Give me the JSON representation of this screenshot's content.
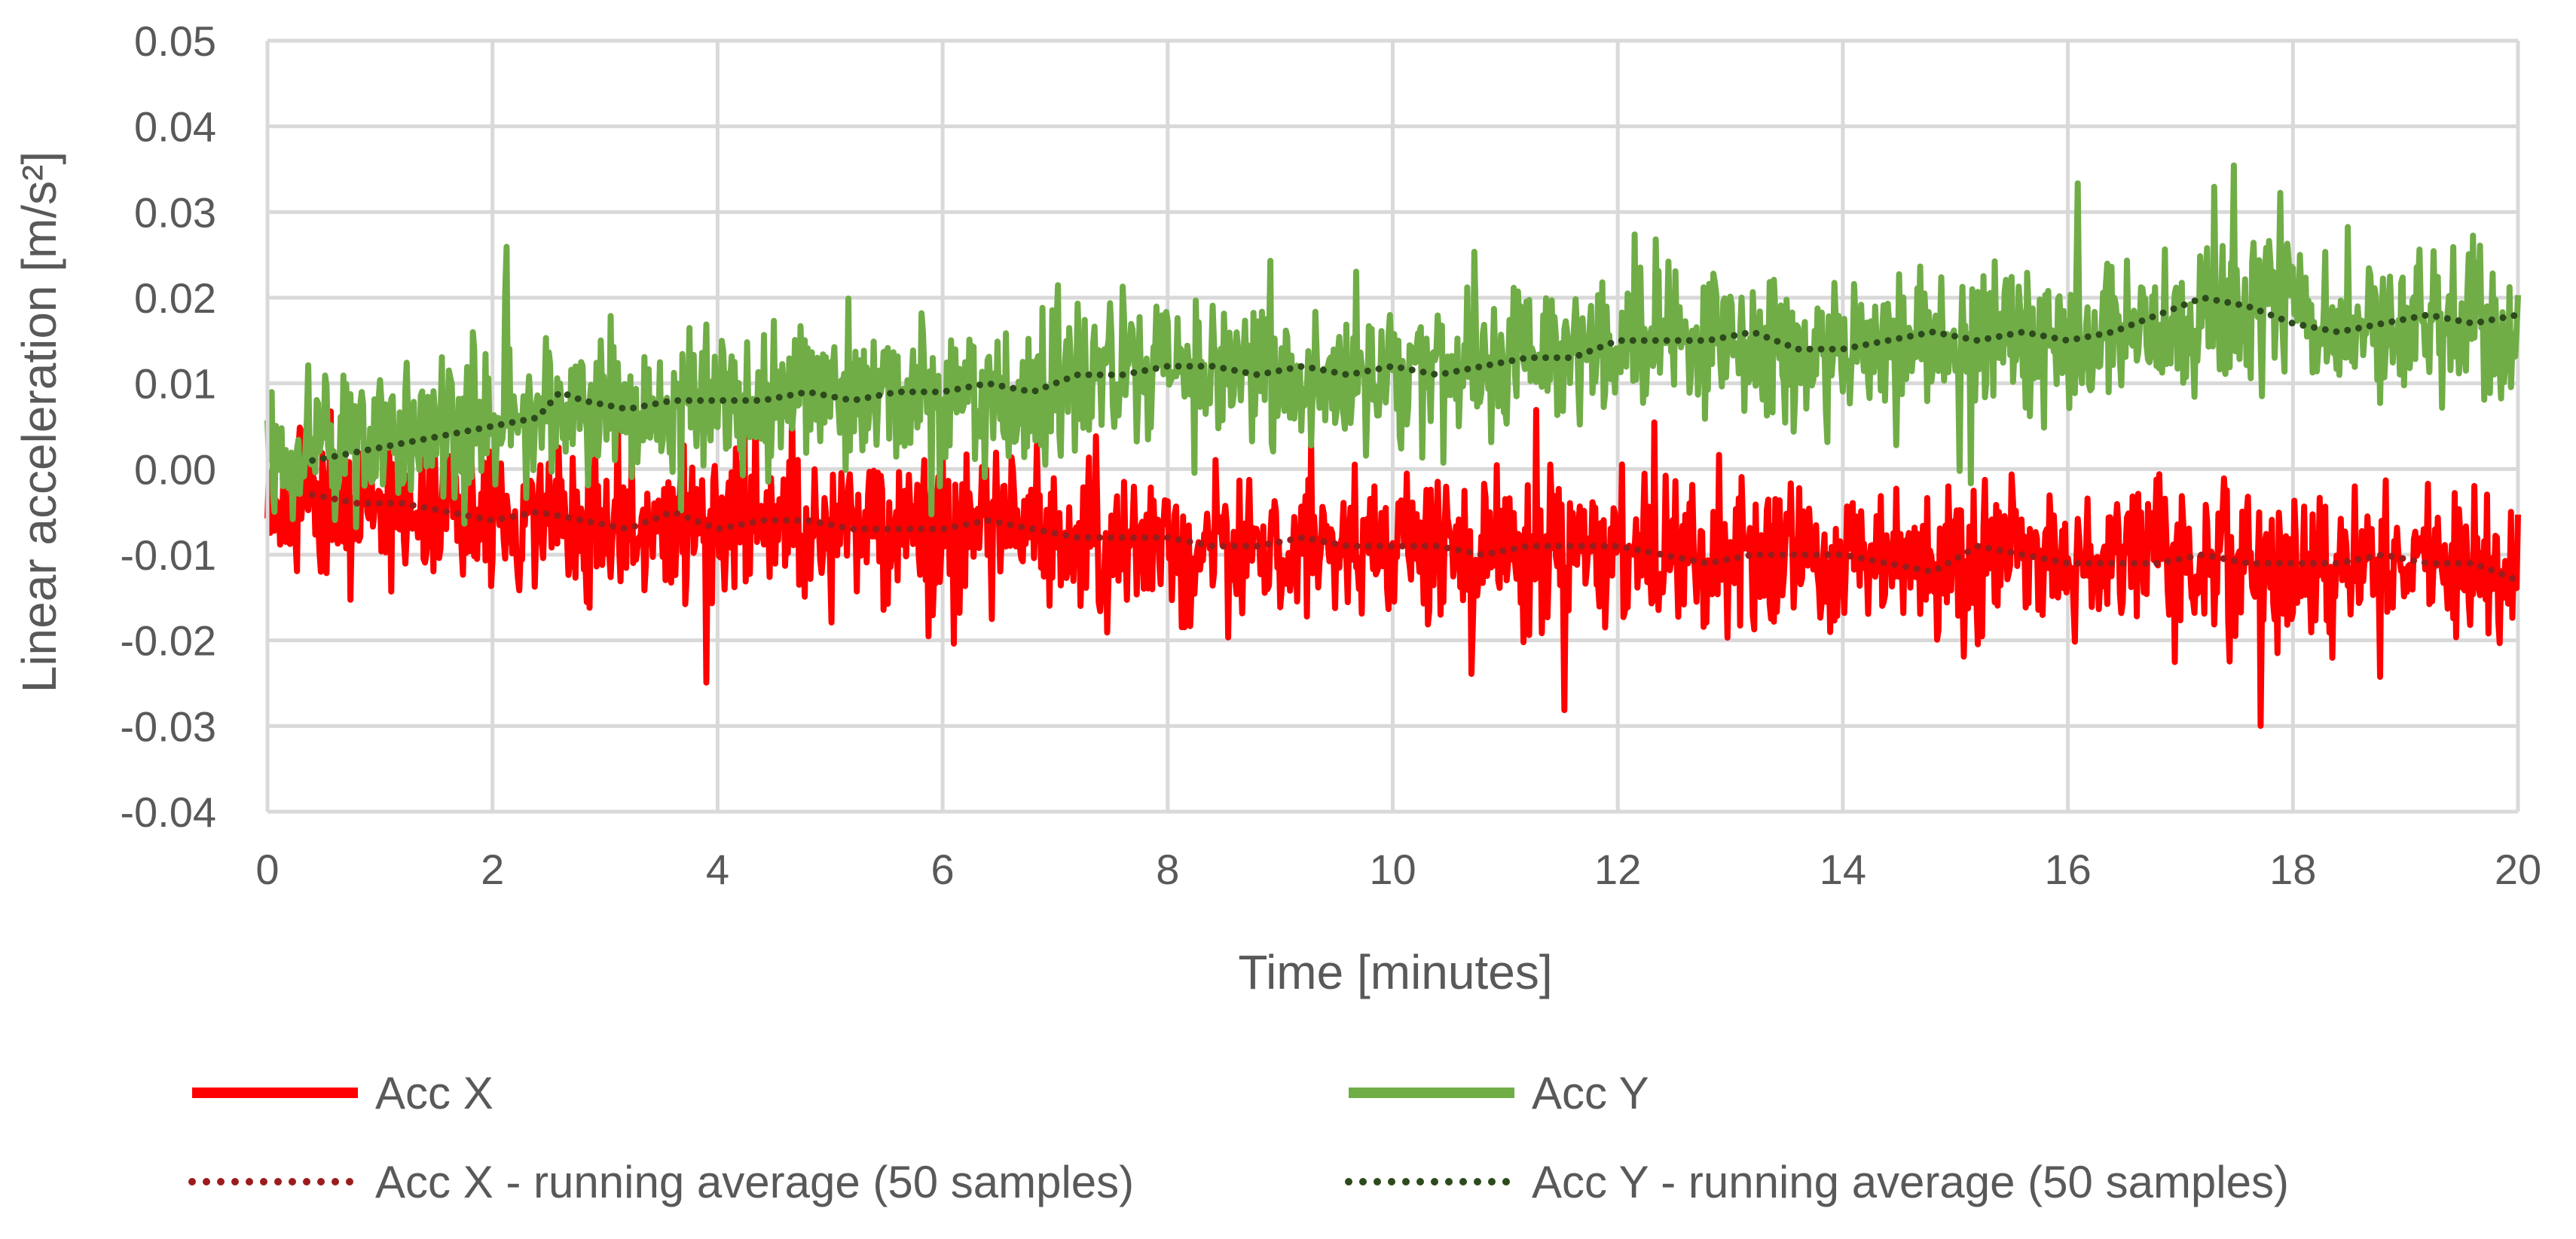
{
  "chart_data": {
    "type": "line",
    "title": "",
    "xlabel": "Time [minutes]",
    "ylabel": "Linear acceleration [m/s²]",
    "xlim": [
      0,
      20
    ],
    "ylim": [
      -0.04,
      0.05
    ],
    "x_ticks": [
      0,
      2,
      4,
      6,
      8,
      10,
      12,
      14,
      16,
      18,
      20
    ],
    "x_tick_labels": [
      "0",
      "2",
      "4",
      "6",
      "8",
      "10",
      "12",
      "14",
      "16",
      "18",
      "20"
    ],
    "y_ticks": [
      -0.04,
      -0.03,
      -0.02,
      -0.01,
      0.0,
      0.01,
      0.02,
      0.03,
      0.04,
      0.05
    ],
    "y_tick_labels": [
      "-0.04",
      "-0.03",
      "-0.02",
      "-0.01",
      "0.00",
      "0.01",
      "0.02",
      "0.03",
      "0.04",
      "0.05"
    ],
    "grid": true,
    "legend_position": "bottom",
    "series": [
      {
        "name": "Acc X",
        "style": "solid",
        "color": "#ff0000",
        "x": [
          0.0,
          0.5,
          1.0,
          1.5,
          2.0,
          2.5,
          3.0,
          3.5,
          4.0,
          4.5,
          5.0,
          5.5,
          6.0,
          6.5,
          7.0,
          7.5,
          8.0,
          8.5,
          9.0,
          9.5,
          10.0,
          10.5,
          11.0,
          11.5,
          12.0,
          12.5,
          13.0,
          13.5,
          14.0,
          14.5,
          15.0,
          15.5,
          16.0,
          16.5,
          17.0,
          17.5,
          18.0,
          18.5,
          19.0,
          19.5,
          20.0
        ],
        "mean": [
          -0.004,
          -0.004,
          -0.004,
          -0.005,
          -0.006,
          -0.005,
          -0.007,
          -0.006,
          -0.006,
          -0.006,
          -0.007,
          -0.008,
          -0.007,
          -0.006,
          -0.008,
          -0.009,
          -0.009,
          -0.009,
          -0.009,
          -0.009,
          -0.009,
          -0.009,
          -0.01,
          -0.009,
          -0.009,
          -0.01,
          -0.011,
          -0.01,
          -0.01,
          -0.011,
          -0.011,
          -0.009,
          -0.011,
          -0.011,
          -0.01,
          -0.011,
          -0.011,
          -0.01,
          -0.011,
          -0.011,
          -0.012
        ],
        "noise_range": [
          -0.03,
          0.008
        ]
      },
      {
        "name": "Acc Y",
        "style": "solid",
        "color": "#70ad47",
        "x": [
          0.0,
          0.5,
          1.0,
          1.5,
          2.0,
          2.5,
          3.0,
          3.5,
          4.0,
          4.5,
          5.0,
          5.5,
          6.0,
          6.5,
          7.0,
          7.5,
          8.0,
          8.5,
          9.0,
          9.5,
          10.0,
          10.5,
          11.0,
          11.5,
          12.0,
          12.5,
          13.0,
          13.5,
          14.0,
          14.5,
          15.0,
          15.5,
          16.0,
          16.5,
          17.0,
          17.5,
          18.0,
          18.5,
          19.0,
          19.5,
          20.0
        ],
        "mean": [
          0.001,
          0.002,
          0.002,
          0.004,
          0.005,
          0.008,
          0.007,
          0.006,
          0.008,
          0.008,
          0.009,
          0.008,
          0.009,
          0.008,
          0.01,
          0.012,
          0.012,
          0.012,
          0.011,
          0.01,
          0.012,
          0.011,
          0.013,
          0.013,
          0.014,
          0.015,
          0.015,
          0.013,
          0.013,
          0.014,
          0.015,
          0.016,
          0.015,
          0.015,
          0.017,
          0.018,
          0.02,
          0.017,
          0.016,
          0.017,
          0.017
        ],
        "noise_range": [
          -0.014,
          0.037
        ]
      },
      {
        "name": "Acc X - running average (50 samples)",
        "style": "dotted",
        "color": "#9b1c1c",
        "x": [
          0.4,
          0.8,
          1.2,
          1.6,
          2.0,
          2.4,
          2.8,
          3.2,
          3.6,
          4.0,
          4.4,
          4.8,
          5.2,
          5.6,
          6.0,
          6.4,
          6.8,
          7.2,
          7.6,
          8.0,
          8.4,
          8.8,
          9.2,
          9.6,
          10.0,
          10.4,
          10.8,
          11.2,
          11.6,
          12.0,
          12.4,
          12.8,
          13.2,
          13.6,
          14.0,
          14.4,
          14.8,
          15.2,
          15.6,
          16.0,
          16.4,
          16.8,
          17.2,
          17.6,
          18.0,
          18.4,
          18.8,
          19.2,
          19.6,
          20.0
        ],
        "values": [
          -0.003,
          -0.004,
          -0.004,
          -0.005,
          -0.006,
          -0.005,
          -0.006,
          -0.007,
          -0.005,
          -0.007,
          -0.006,
          -0.006,
          -0.007,
          -0.007,
          -0.007,
          -0.006,
          -0.007,
          -0.008,
          -0.008,
          -0.008,
          -0.009,
          -0.009,
          -0.008,
          -0.009,
          -0.009,
          -0.009,
          -0.01,
          -0.009,
          -0.009,
          -0.009,
          -0.01,
          -0.011,
          -0.01,
          -0.01,
          -0.01,
          -0.011,
          -0.012,
          -0.009,
          -0.01,
          -0.011,
          -0.011,
          -0.011,
          -0.01,
          -0.011,
          -0.011,
          -0.011,
          -0.01,
          -0.011,
          -0.011,
          -0.013
        ]
      },
      {
        "name": "Acc Y - running average (50 samples)",
        "style": "dotted",
        "color": "#2d4a1c",
        "x": [
          0.4,
          0.8,
          1.2,
          1.6,
          2.0,
          2.4,
          2.6,
          2.8,
          3.2,
          3.6,
          4.0,
          4.4,
          4.8,
          5.2,
          5.6,
          6.0,
          6.4,
          6.8,
          7.2,
          7.6,
          8.0,
          8.4,
          8.8,
          9.2,
          9.6,
          10.0,
          10.4,
          10.8,
          11.2,
          11.6,
          12.0,
          12.4,
          12.8,
          13.2,
          13.6,
          14.0,
          14.4,
          14.8,
          15.2,
          15.6,
          16.0,
          16.4,
          16.8,
          17.2,
          17.6,
          18.0,
          18.4,
          18.8,
          19.2,
          19.6,
          20.0
        ],
        "values": [
          0.001,
          0.002,
          0.003,
          0.004,
          0.005,
          0.006,
          0.009,
          0.008,
          0.007,
          0.008,
          0.008,
          0.008,
          0.009,
          0.008,
          0.009,
          0.009,
          0.01,
          0.009,
          0.011,
          0.011,
          0.012,
          0.012,
          0.011,
          0.012,
          0.011,
          0.012,
          0.011,
          0.012,
          0.013,
          0.013,
          0.015,
          0.015,
          0.015,
          0.016,
          0.014,
          0.014,
          0.015,
          0.016,
          0.015,
          0.016,
          0.015,
          0.016,
          0.018,
          0.02,
          0.019,
          0.017,
          0.016,
          0.017,
          0.018,
          0.017,
          0.018
        ]
      }
    ]
  }
}
